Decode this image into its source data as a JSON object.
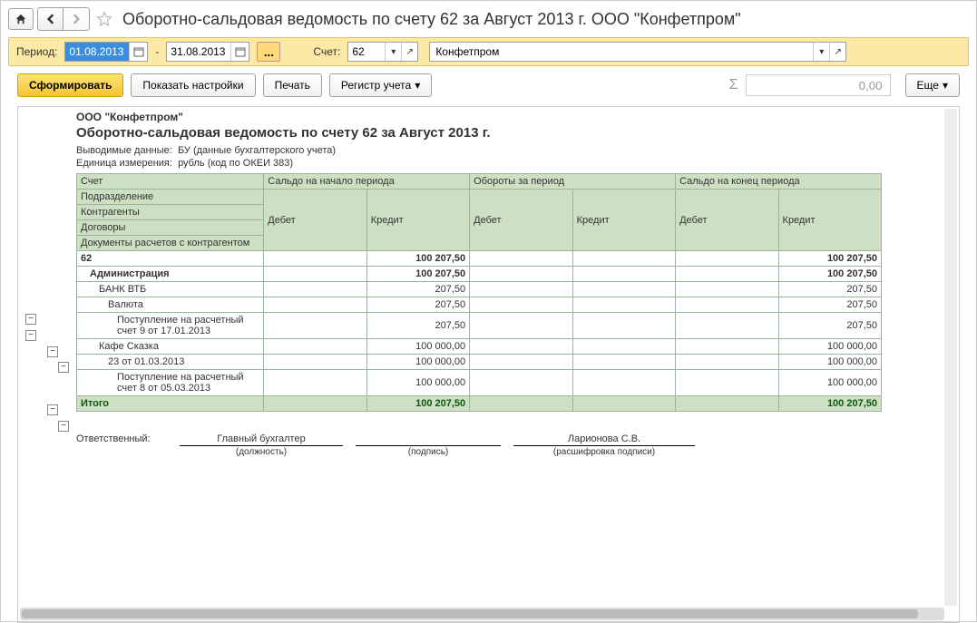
{
  "titlebar": {
    "title": "Оборотно-сальдовая ведомость по счету 62 за Август 2013 г. ООО \"Конфетпром\""
  },
  "params": {
    "period_label": "Период:",
    "date_from": "01.08.2013",
    "date_to": "31.08.2013",
    "account_label": "Счет:",
    "account": "62",
    "org": "Конфетпром"
  },
  "actions": {
    "form": "Сформировать",
    "settings": "Показать настройки",
    "print": "Печать",
    "register": "Регистр учета",
    "more": "Еще",
    "sum_value": "0,00"
  },
  "report": {
    "org_name": "ООО \"Конфетпром\"",
    "title": "Оборотно-сальдовая ведомость по счету 62 за Август 2013 г.",
    "meta1_label": "Выводимые данные:",
    "meta1_value": "БУ (данные бухгалтерского учета)",
    "meta2_label": "Единица измерения:",
    "meta2_value": "рубль (код по ОКЕИ 383)",
    "headers": {
      "account": "Счет",
      "saldo_begin": "Сальдо на начало периода",
      "turnover": "Обороты за период",
      "saldo_end": "Сальдо на конец периода",
      "division": "Подразделение",
      "debit": "Дебет",
      "credit": "Кредит",
      "contractors": "Контрагенты",
      "contracts": "Договоры",
      "docs": "Документы расчетов с контрагентом"
    },
    "rows": [
      {
        "label": "62",
        "indent": 0,
        "begin_credit": "100 207,50",
        "end_credit": "100 207,50",
        "bold": true
      },
      {
        "label": "Администрация",
        "indent": 1,
        "begin_credit": "100 207,50",
        "end_credit": "100 207,50",
        "bold": true
      },
      {
        "label": "БАНК ВТБ",
        "indent": 2,
        "begin_credit": "207,50",
        "end_credit": "207,50"
      },
      {
        "label": "Валюта",
        "indent": 3,
        "begin_credit": "207,50",
        "end_credit": "207,50"
      },
      {
        "label": "Поступление на расчетный счет 9 от 17.01.2013",
        "indent": 4,
        "begin_credit": "207,50",
        "end_credit": "207,50"
      },
      {
        "label": "Кафе Сказка",
        "indent": 2,
        "begin_credit": "100 000,00",
        "end_credit": "100 000,00"
      },
      {
        "label": "23  от 01.03.2013",
        "indent": 3,
        "begin_credit": "100 000,00",
        "end_credit": "100 000,00"
      },
      {
        "label": "Поступление на расчетный счет 8 от 05.03.2013",
        "indent": 4,
        "begin_credit": "100 000,00",
        "end_credit": "100 000,00"
      }
    ],
    "total": {
      "label": "Итого",
      "begin_credit": "100 207,50",
      "end_credit": "100 207,50"
    }
  },
  "signatures": {
    "resp_label": "Ответственный:",
    "position": "Главный бухгалтер",
    "position_cap": "(должность)",
    "sign_cap": "(подпись)",
    "name": "Ларионова С.В.",
    "name_cap": "(расшифровка подписи)"
  },
  "style": {
    "header_bg": "#cde0c4",
    "border": "#9bb49b",
    "col_widths": {
      "label": 200,
      "col": 110
    }
  }
}
